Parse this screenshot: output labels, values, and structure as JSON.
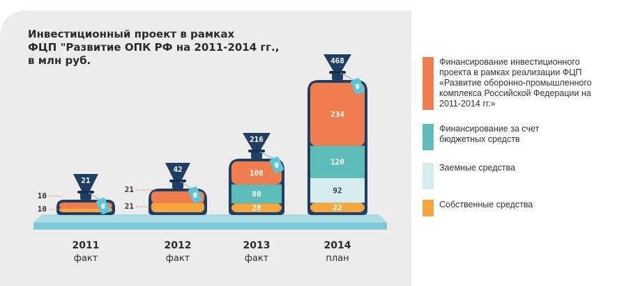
{
  "title_lines": [
    "Инвестиционный проект в рамках",
    "ФЦП \"Развитие ОПК РФ на 2011-2014 гг.,",
    "в млн руб."
  ],
  "colors": {
    "own": "#f6a63d",
    "loan": "#d7ecef",
    "budget": "#5fbdb9",
    "fcp": "#ee7d50",
    "bag": "#1f3e63",
    "tag": "#5cc6d8",
    "shelf": "#7cc8d6"
  },
  "legend": [
    {
      "key": "fcp",
      "lines": [
        "Финансирование инвестиционного",
        "проекта в рамках реализации ФЦП",
        "«Развитие оборонно-промышленного",
        "комплекса Российской Федерации на",
        "2011-2014 гг.»"
      ]
    },
    {
      "key": "budget",
      "lines": [
        "Финансирование за счет",
        "бюджетных средств"
      ]
    },
    {
      "key": "loan",
      "lines": [
        "Заемные средства"
      ]
    },
    {
      "key": "own",
      "lines": [
        "Собственные средства"
      ]
    }
  ],
  "chart_data": {
    "type": "bar",
    "stacked": true,
    "categories": [
      "2011",
      "2012",
      "2013",
      "2014"
    ],
    "category_sublabels": [
      "факт",
      "факт",
      "факт",
      "план"
    ],
    "totals": [
      21,
      42,
      216,
      468
    ],
    "series": [
      {
        "key": "own",
        "name": "Собственные средства",
        "values": [
          10,
          21,
          28,
          22
        ]
      },
      {
        "key": "loan",
        "name": "Заемные средства",
        "values": [
          0,
          0,
          0,
          92
        ]
      },
      {
        "key": "budget",
        "name": "Финансирование за счет бюджетных средств",
        "values": [
          0,
          0,
          80,
          120
        ]
      },
      {
        "key": "fcp",
        "name": "Финансирование инвестиционного проекта в рамках реализации ФЦП «Развитие оборонно-промышленного комплекса Российской Федерации на 2011-2014 гг.»",
        "values": [
          10,
          21,
          108,
          234
        ]
      }
    ],
    "currency_symbol": "₽"
  }
}
